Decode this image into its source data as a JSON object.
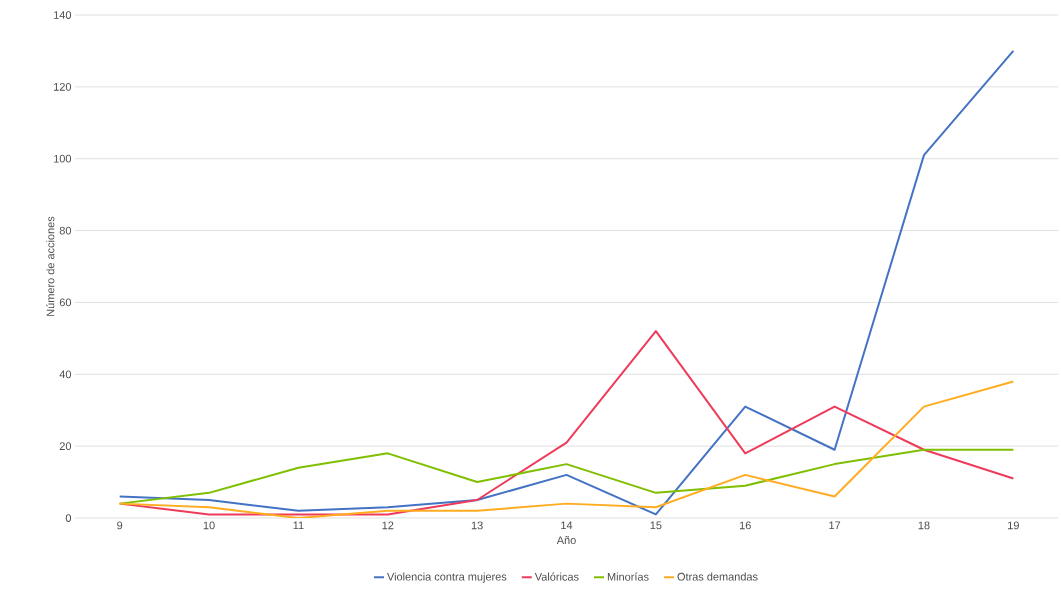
{
  "chart_data": {
    "type": "line",
    "xlabel": "Año",
    "ylabel": "Número de acciones",
    "categories": [
      "9",
      "10",
      "11",
      "12",
      "13",
      "14",
      "15",
      "16",
      "17",
      "18",
      "19"
    ],
    "series": [
      {
        "name": "Violencia contra mujeres",
        "color": "#4472c4",
        "values": [
          6,
          5,
          2,
          3,
          5,
          12,
          1,
          31,
          19,
          101,
          130
        ]
      },
      {
        "name": "Valóricas",
        "color": "#ee3b5a",
        "values": [
          4,
          1,
          1,
          1,
          5,
          21,
          52,
          18,
          31,
          19,
          11
        ]
      },
      {
        "name": "Minorías",
        "color": "#7fbf00",
        "values": [
          4,
          7,
          14,
          18,
          10,
          15,
          7,
          9,
          15,
          19,
          19
        ]
      },
      {
        "name": "Otras demandas",
        "color": "#ffac21",
        "values": [
          4,
          3,
          0,
          2,
          2,
          4,
          3,
          12,
          6,
          31,
          38
        ]
      }
    ],
    "ylim": [
      0,
      140
    ],
    "yticks": [
      0,
      20,
      40,
      60,
      80,
      100,
      120,
      140
    ],
    "grid": "y",
    "legend": "bottom",
    "marker": "none",
    "line_style": "solid"
  }
}
